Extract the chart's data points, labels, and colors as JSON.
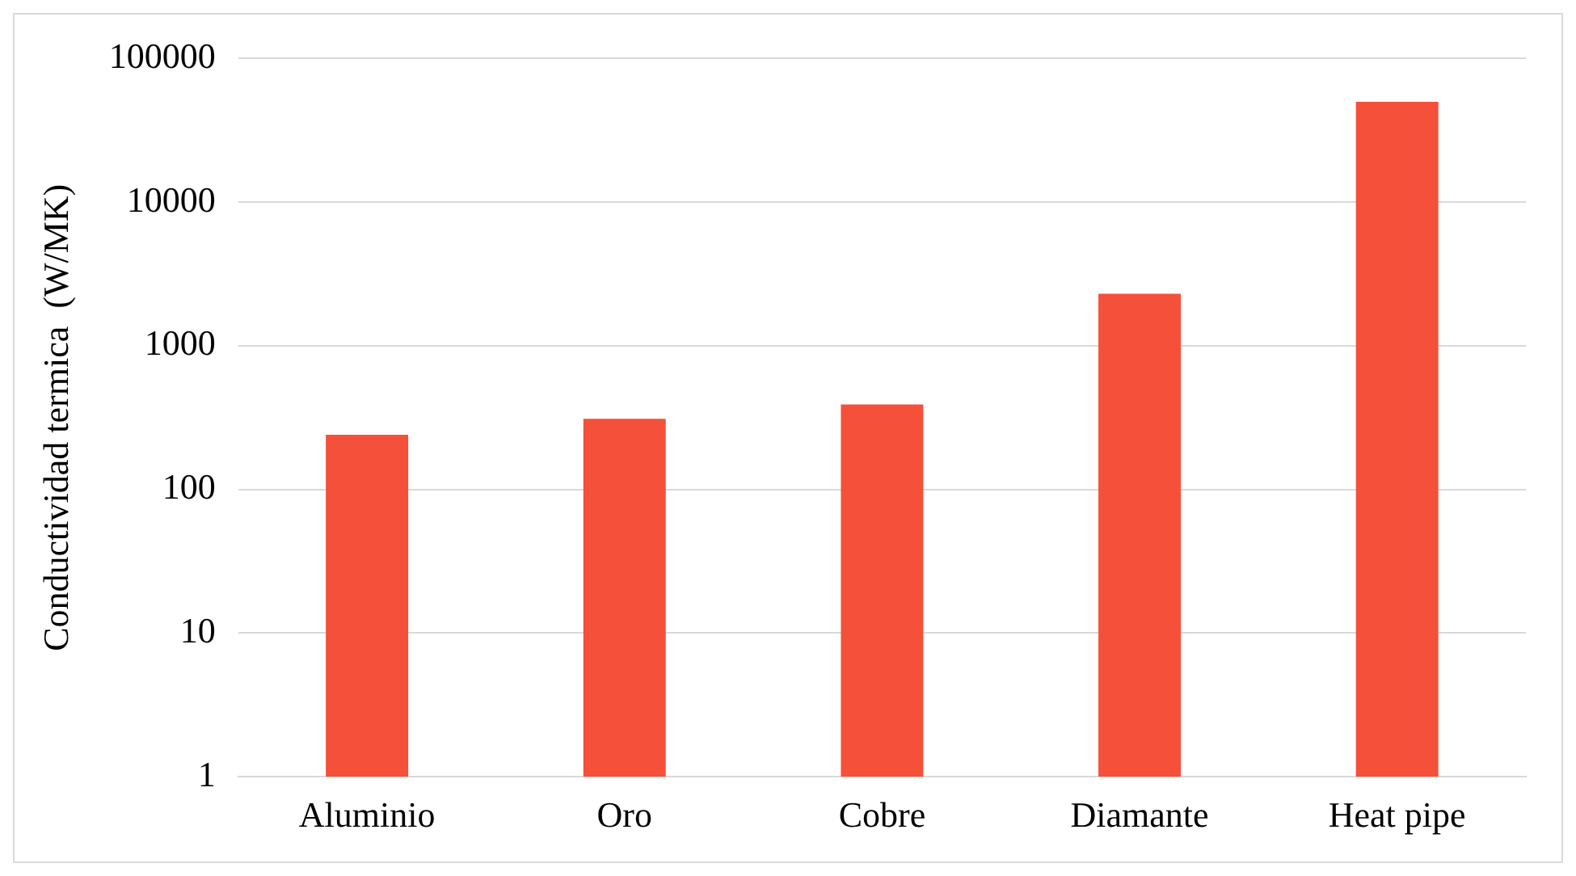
{
  "chart_data": {
    "type": "bar",
    "ylabel": "Conductividad termica  (W/MK)",
    "categories": [
      "Aluminio",
      "Oro",
      "Cobre",
      "Diamante",
      "Heat pipe"
    ],
    "values": [
      240,
      310,
      390,
      2300,
      50000
    ],
    "color": "#f5503a",
    "log": "y",
    "ylim": [
      1,
      100000
    ],
    "yticks": [
      1,
      10,
      100,
      1000,
      10000,
      100000
    ],
    "grid": "y",
    "legend": false
  }
}
